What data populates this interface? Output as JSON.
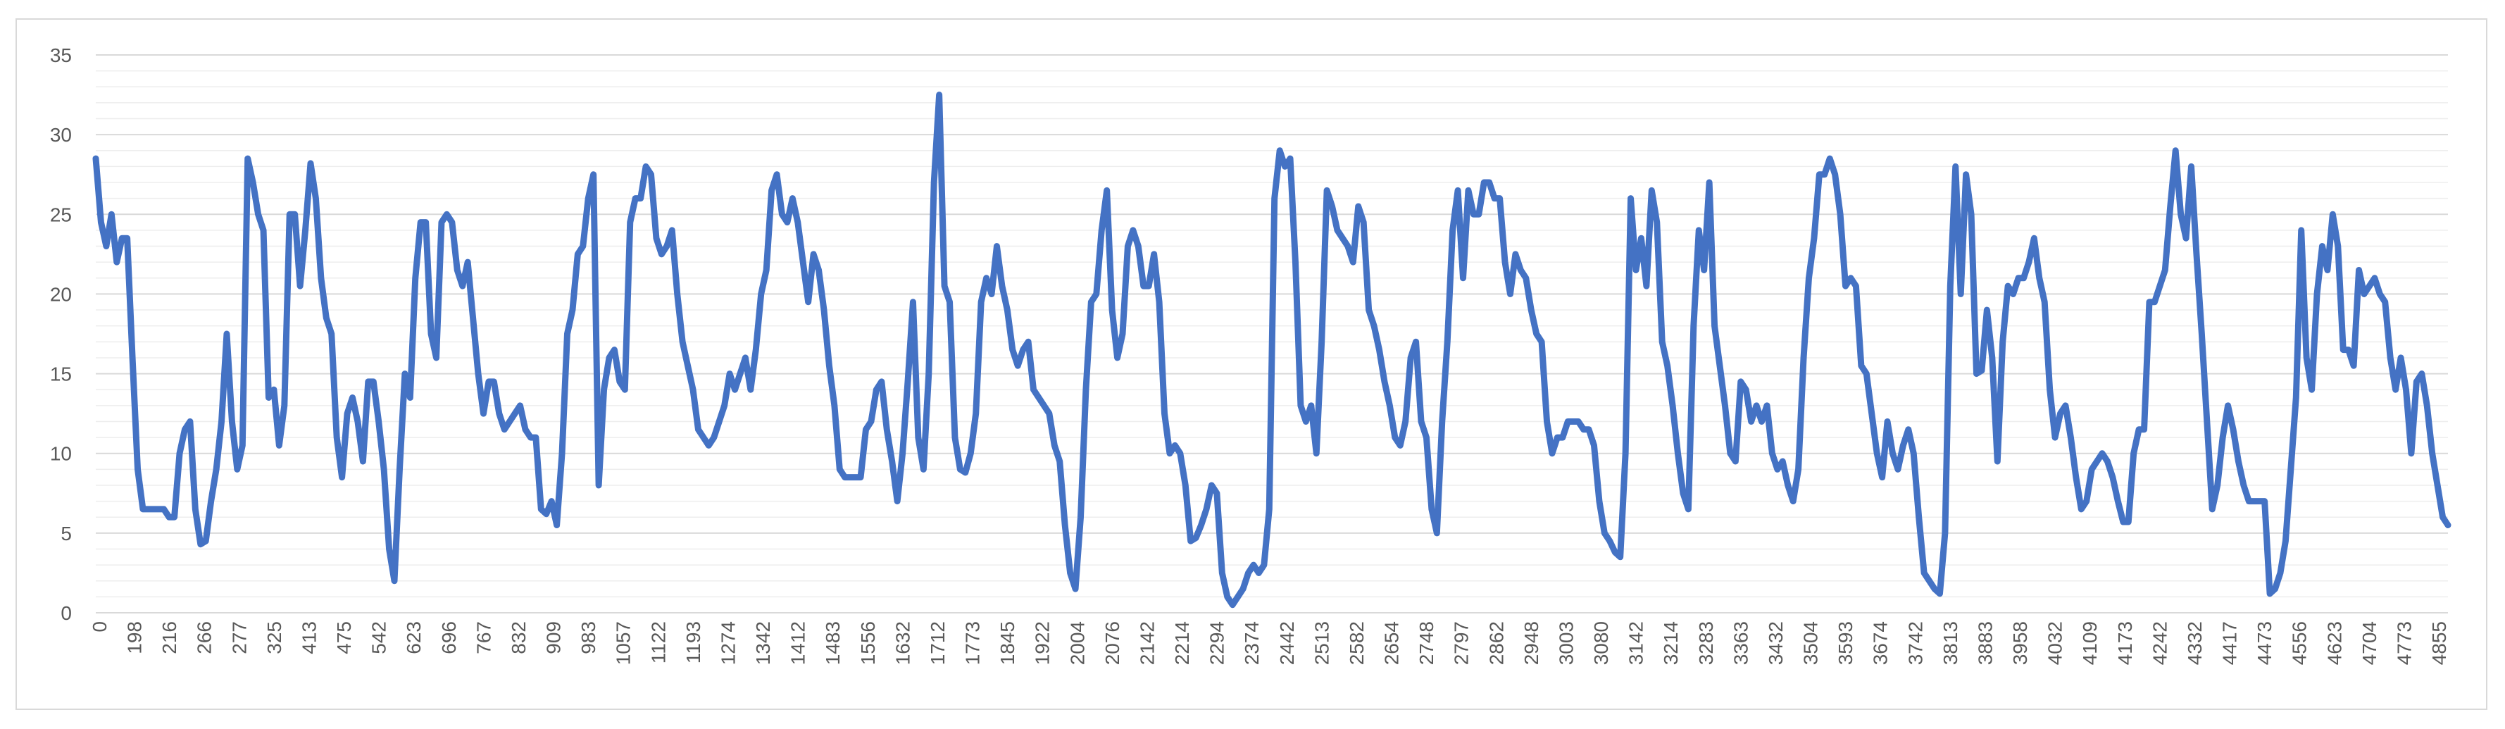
{
  "chart_data": {
    "type": "line",
    "title": "",
    "xlabel": "",
    "ylabel": "",
    "ylim": [
      0,
      35
    ],
    "y_ticks": [
      "0",
      "5",
      "10",
      "15",
      "20",
      "25",
      "30",
      "35"
    ],
    "x_tick_labels": [
      "0",
      "198",
      "216",
      "266",
      "277",
      "325",
      "413",
      "475",
      "542",
      "623",
      "696",
      "767",
      "832",
      "909",
      "983",
      "1057",
      "1122",
      "1193",
      "1274",
      "1342",
      "1412",
      "1483",
      "1556",
      "1632",
      "1712",
      "1773",
      "1845",
      "1922",
      "2004",
      "2076",
      "2142",
      "2214",
      "2294",
      "2374",
      "2442",
      "2513",
      "2582",
      "2654",
      "2748",
      "2797",
      "2862",
      "2948",
      "3003",
      "3080",
      "3142",
      "3214",
      "3283",
      "3363",
      "3432",
      "3504",
      "3593",
      "3674",
      "3742",
      "3813",
      "3883",
      "3958",
      "4032",
      "4109",
      "4173",
      "4242",
      "4332",
      "4417",
      "4473",
      "4556",
      "4623",
      "4704",
      "4773",
      "4855"
    ],
    "grid": "horizontal",
    "legend": "none",
    "line_color": "#4472c4",
    "series": [
      {
        "values": [
          28.5,
          24.5,
          23,
          25,
          22,
          23.5,
          23.5,
          16,
          9,
          6.5,
          6.5,
          6.5,
          6.5,
          6.5,
          6,
          6,
          10,
          11.5,
          12,
          6.5,
          4.3,
          4.5,
          7,
          9,
          12,
          17.5,
          12,
          9,
          10.5,
          28.5,
          27,
          25,
          24,
          13.5,
          14,
          10.5,
          13,
          25,
          25,
          20.5,
          24,
          28.2,
          26,
          21,
          18.5,
          17.5,
          11,
          8.5,
          12.5,
          13.5,
          12,
          9.5,
          14.5,
          14.5,
          12,
          9,
          4,
          2,
          9,
          15,
          13.5,
          21,
          24.5,
          24.5,
          17.5,
          16,
          24.5,
          25,
          24.5,
          21.5,
          20.5,
          22,
          18.5,
          15,
          12.5,
          14.5,
          14.5,
          12.5,
          11.5,
          12,
          12.5,
          13,
          11.5,
          11,
          11,
          6.5,
          6.2,
          7,
          5.5,
          10,
          17.5,
          19,
          22.5,
          23,
          26,
          27.5,
          8,
          14,
          16,
          16.5,
          14.5,
          14,
          24.5,
          26,
          26,
          28,
          27.5,
          23.5,
          22.5,
          23,
          24,
          20,
          17,
          15.5,
          14,
          11.5,
          11,
          10.5,
          11,
          12,
          13,
          15,
          14,
          15,
          16,
          14,
          16.5,
          20,
          21.5,
          26.5,
          27.5,
          25,
          24.5,
          26,
          24.5,
          22,
          19.5,
          22.5,
          21.5,
          19,
          15.5,
          13,
          9,
          8.5,
          8.5,
          8.5,
          8.5,
          11.5,
          12,
          14,
          14.5,
          11.5,
          9.5,
          7,
          10,
          14.5,
          19.5,
          11,
          9,
          15,
          27,
          32.5,
          20.5,
          19.5,
          11,
          9,
          8.8,
          10,
          12.5,
          19.5,
          21,
          20,
          23,
          20.5,
          19,
          16.5,
          15.5,
          16.5,
          17,
          14,
          13.5,
          13,
          12.5,
          10.5,
          9.5,
          5.5,
          2.5,
          1.5,
          6,
          14,
          19.5,
          20,
          24,
          26.5,
          19,
          16,
          17.5,
          23,
          24,
          23,
          20.5,
          20.5,
          22.5,
          19.5,
          12.5,
          10,
          10.5,
          10,
          8,
          4.5,
          4.7,
          5.5,
          6.5,
          8,
          7.5,
          2.5,
          1,
          0.5,
          1,
          1.5,
          2.5,
          3,
          2.5,
          3,
          6.5,
          26,
          29,
          28,
          28.5,
          22,
          13,
          12,
          13,
          10,
          17,
          26.5,
          25.5,
          24,
          23.5,
          23,
          22,
          25.5,
          24.5,
          19,
          18,
          16.5,
          14.5,
          13,
          11,
          10.5,
          12,
          16,
          17,
          12,
          11,
          6.5,
          5,
          12,
          17,
          24,
          26.5,
          21,
          26.5,
          25,
          25,
          27,
          27,
          26,
          26,
          22,
          20,
          22.5,
          21.5,
          21,
          19,
          17.5,
          17,
          12,
          10,
          11,
          11,
          12,
          12,
          12,
          11.5,
          11.5,
          10.5,
          7,
          5,
          4.5,
          3.8,
          3.5,
          10,
          26,
          21.5,
          23.5,
          20.5,
          26.5,
          24.5,
          17,
          15.5,
          13,
          10,
          7.5,
          6.5,
          18,
          24,
          21.5,
          27,
          18,
          15.5,
          13,
          10,
          9.5,
          14.5,
          14,
          12,
          13,
          12,
          13,
          10,
          9,
          9.5,
          8,
          7,
          9,
          16,
          21,
          23.5,
          27.5,
          27.5,
          28.5,
          27.5,
          25,
          20.5,
          21,
          20.5,
          15.5,
          15,
          12.5,
          10,
          8.5,
          12,
          10,
          9,
          10.5,
          11.5,
          10,
          6,
          2.5,
          2,
          1.5,
          1.2,
          5,
          20.5,
          28,
          20,
          27.5,
          25,
          15,
          15.2,
          19,
          16,
          9.5,
          17,
          20.5,
          20,
          21,
          21,
          22,
          23.5,
          21,
          19.5,
          14,
          11,
          12.5,
          13,
          11,
          8.5,
          6.5,
          7,
          9,
          9.5,
          10,
          9.5,
          8.5,
          7,
          5.7,
          5.7,
          10,
          11.5,
          11.5,
          19.5,
          19.5,
          20.5,
          21.5,
          25.5,
          29,
          25,
          23.5,
          28,
          22.5,
          17.5,
          12,
          6.5,
          8,
          11,
          13,
          11.5,
          9.5,
          8,
          7,
          7,
          7,
          7,
          1.2,
          1.5,
          2.5,
          4.5,
          9,
          13.5,
          24,
          16,
          14,
          20,
          23,
          21.5,
          25,
          23,
          16.5,
          16.5,
          15.5,
          21.5,
          20,
          20.5,
          21,
          20,
          19.5,
          16,
          14,
          16,
          14,
          10,
          14.5,
          15,
          13,
          10,
          8,
          6,
          5.5
        ]
      }
    ]
  }
}
